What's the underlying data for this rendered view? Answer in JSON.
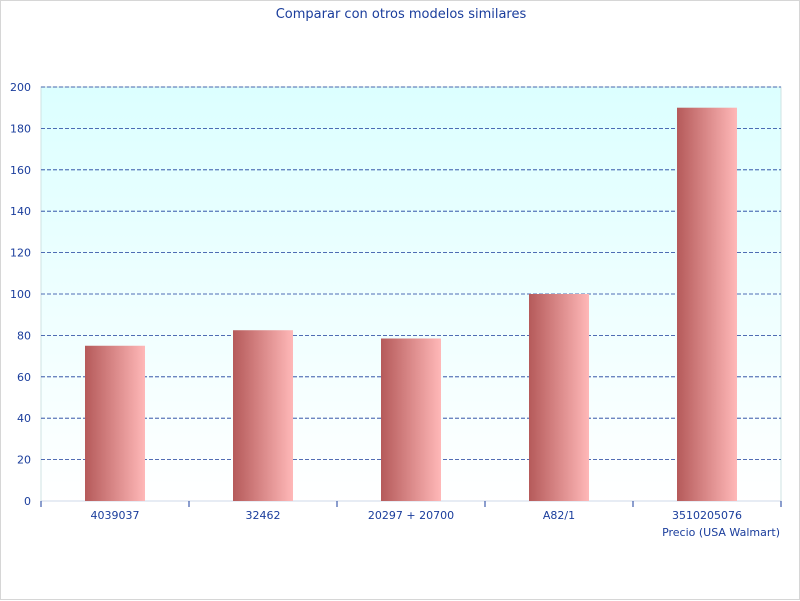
{
  "chart_data": {
    "type": "bar",
    "title": "Comparar con otros modelos similares",
    "xlabel": "Precio (USA Walmart)",
    "ylabel": "",
    "categories": [
      "4039037",
      "32462",
      "20297 + 20700",
      "A82/1",
      "3510205076"
    ],
    "values": [
      75,
      82.5,
      78.5,
      100,
      190
    ],
    "ylim": [
      0,
      200
    ],
    "yticks": [
      0,
      20,
      40,
      60,
      80,
      100,
      120,
      140,
      160,
      180,
      200
    ],
    "grid": true,
    "legend": "none",
    "colors": {
      "bar_dark": "#b55a5a",
      "bar_light": "#ffb8b8",
      "plot_bg_top": "#dcffff",
      "plot_bg_bottom": "#ffffff",
      "grid": "#1a3d9c",
      "text": "#1a3d9c"
    }
  }
}
